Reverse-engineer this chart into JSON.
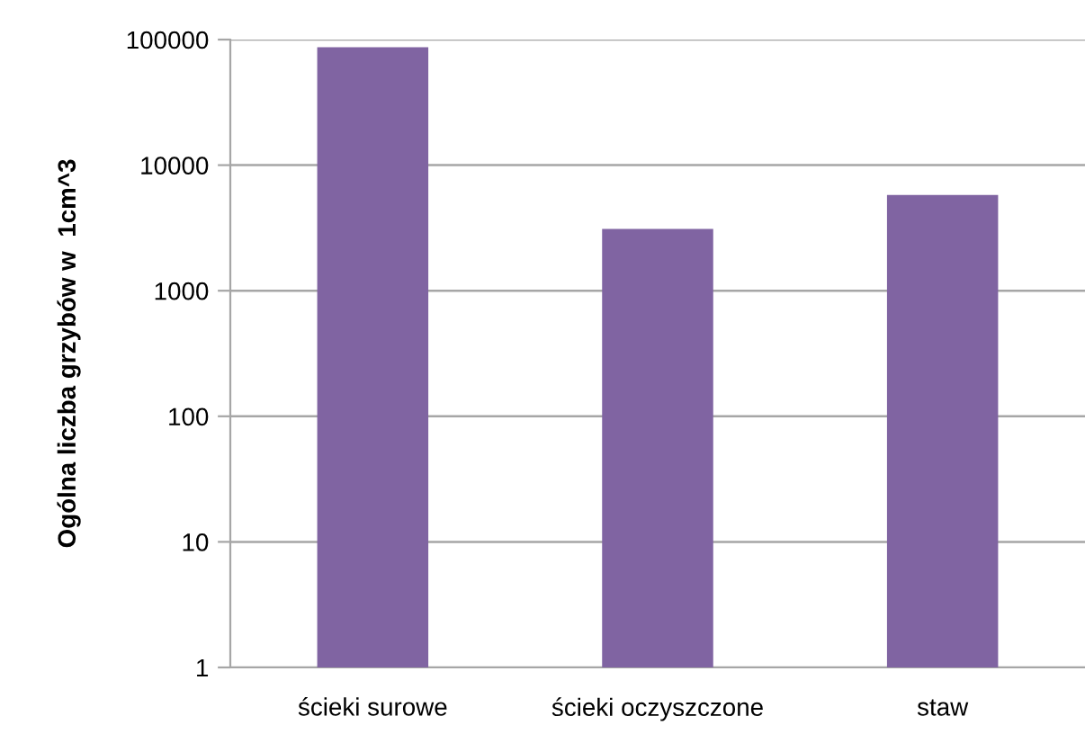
{
  "chart_data": {
    "type": "bar",
    "ylabel": "Ogólna liczba grzybów w  1cm^3",
    "categories": [
      "ścieki surowe",
      "ścieki oczyszczone",
      "staw"
    ],
    "values": [
      87000,
      3100,
      5800
    ],
    "color": "#8064a2",
    "log": true,
    "ylim": [
      1,
      100000
    ],
    "yticks": [
      1,
      10,
      100,
      1000,
      10000,
      100000
    ],
    "grid": "y"
  }
}
